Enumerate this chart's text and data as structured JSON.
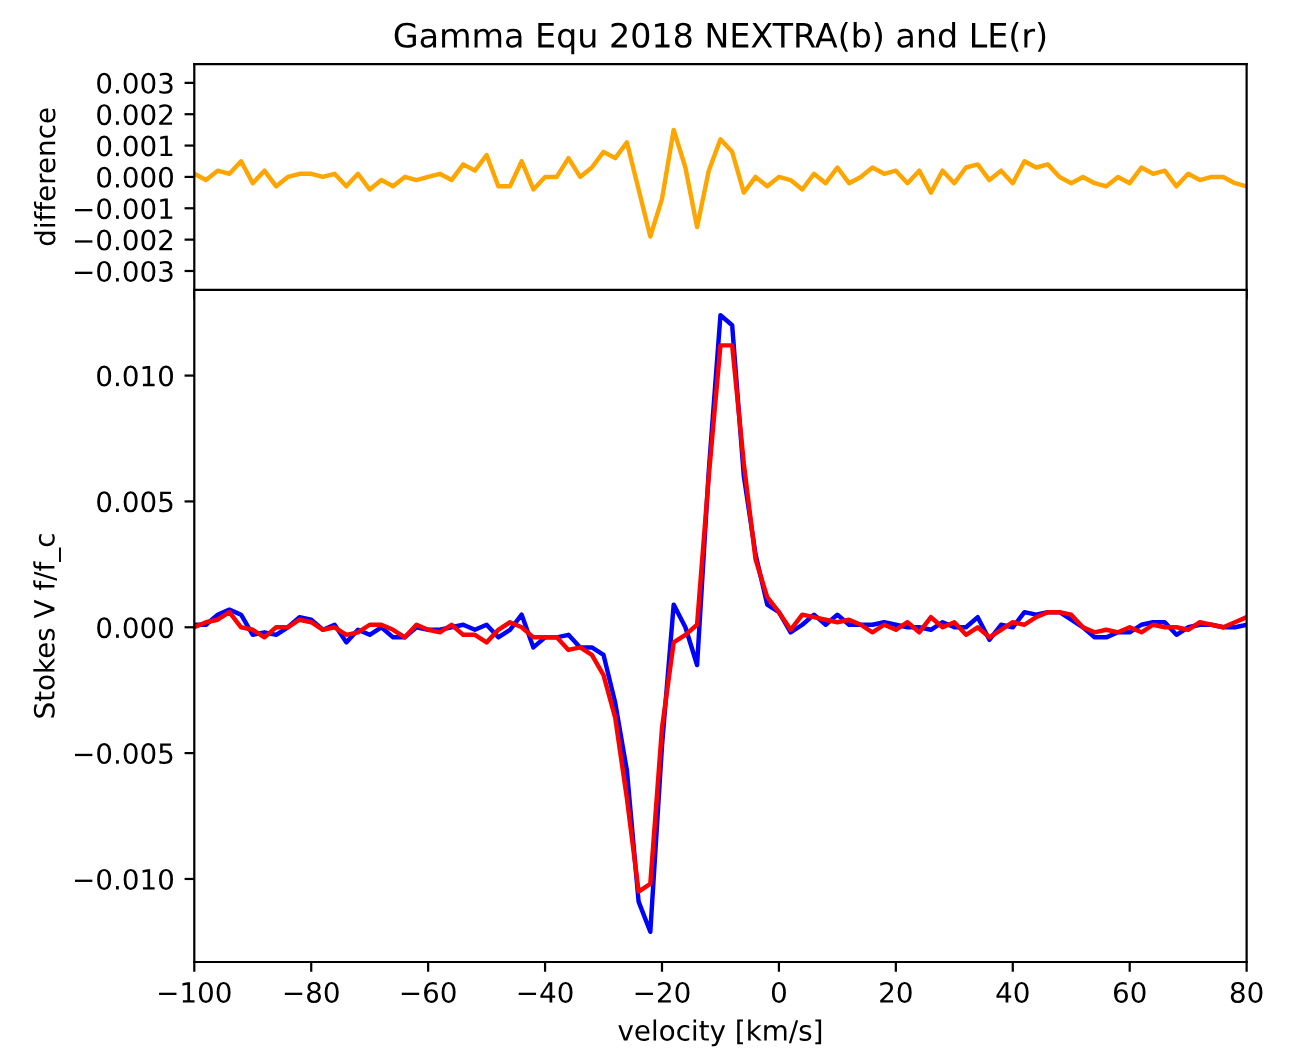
{
  "chart_data": [
    {
      "type": "line",
      "title": "Gamma Equ 2018 NEXTRA(b) and LE(r)",
      "ylabel": "difference",
      "tick_labels": "y",
      "x": [
        -100,
        -98,
        -96,
        -94,
        -92,
        -90,
        -88,
        -86,
        -84,
        -82,
        -80,
        -78,
        -76,
        -74,
        -72,
        -70,
        -68,
        -66,
        -64,
        -62,
        -60,
        -58,
        -56,
        -54,
        -52,
        -50,
        -48,
        -46,
        -44,
        -42,
        -40,
        -38,
        -36,
        -34,
        -32,
        -30,
        -28,
        -26,
        -24,
        -22,
        -20,
        -18,
        -16,
        -14,
        -12,
        -10,
        -8,
        -6,
        -4,
        -2,
        0,
        2,
        4,
        6,
        8,
        10,
        12,
        14,
        16,
        18,
        20,
        22,
        24,
        26,
        28,
        30,
        32,
        34,
        36,
        38,
        40,
        42,
        44,
        46,
        48,
        50,
        52,
        54,
        56,
        58,
        60,
        62,
        64,
        66,
        68,
        70,
        72,
        74,
        76,
        78,
        80
      ],
      "series": [
        {
          "color": "#ffa500",
          "values": [
            0.0001,
            -0.0001,
            0.0002,
            0.0001,
            0.0005,
            -0.0002,
            0.0002,
            -0.0003,
            0.0,
            0.0001,
            0.0001,
            0.0,
            0.0001,
            -0.0003,
            0.0001,
            -0.0004,
            -0.0001,
            -0.0003,
            0.0,
            -0.0001,
            0.0,
            0.0001,
            -0.0001,
            0.0004,
            0.0002,
            0.0007,
            -0.0003,
            -0.0003,
            0.0005,
            -0.0004,
            0.0,
            0.0,
            0.0006,
            0.0,
            0.0003,
            0.0008,
            0.0006,
            0.0011,
            -0.0004,
            -0.0019,
            -0.0007,
            0.0015,
            0.0003,
            -0.0016,
            0.0002,
            0.0012,
            0.0008,
            -0.0005,
            0.0,
            -0.0003,
            0.0,
            -0.0001,
            -0.0004,
            0.0001,
            -0.0002,
            0.0003,
            -0.0002,
            0.0,
            0.0003,
            0.0001,
            0.0002,
            -0.0002,
            0.0002,
            -0.0005,
            0.0002,
            -0.0002,
            0.0003,
            0.0004,
            -0.0001,
            0.0002,
            -0.0002,
            0.0005,
            0.0003,
            0.0004,
            0.0,
            -0.0002,
            0.0,
            -0.0002,
            -0.0003,
            0.0,
            -0.0002,
            0.0003,
            0.0001,
            0.0002,
            -0.0003,
            0.0001,
            -0.0001,
            0.0,
            0.0,
            -0.0002,
            -0.0003
          ]
        }
      ],
      "xlim": [
        -100,
        80
      ],
      "xticks": [
        -100,
        -80,
        -60,
        -40,
        -20,
        0,
        20,
        40,
        60,
        80
      ],
      "ylim": [
        -0.0036,
        0.0036
      ],
      "yticks": [
        {
          "value": -0.003,
          "label": "−0.003"
        },
        {
          "value": -0.002,
          "label": "−0.002"
        },
        {
          "value": -0.001,
          "label": "−0.001"
        },
        {
          "value": 0,
          "label": "0.000"
        },
        {
          "value": 0.001,
          "label": "0.001"
        },
        {
          "value": 0.002,
          "label": "0.002"
        },
        {
          "value": 0.003,
          "label": "0.003"
        }
      ]
    },
    {
      "type": "line",
      "xlabel": "velocity [km/s]",
      "ylabel": "Stokes V f/f_c",
      "x": [
        -100,
        -98,
        -96,
        -94,
        -92,
        -90,
        -88,
        -86,
        -84,
        -82,
        -80,
        -78,
        -76,
        -74,
        -72,
        -70,
        -68,
        -66,
        -64,
        -62,
        -60,
        -58,
        -56,
        -54,
        -52,
        -50,
        -48,
        -46,
        -44,
        -42,
        -40,
        -38,
        -36,
        -34,
        -32,
        -30,
        -28,
        -26,
        -24,
        -22,
        -20,
        -18,
        -16,
        -14,
        -12,
        -10,
        -8,
        -6,
        -4,
        -2,
        0,
        2,
        4,
        6,
        8,
        10,
        12,
        14,
        16,
        18,
        20,
        22,
        24,
        26,
        28,
        30,
        32,
        34,
        36,
        38,
        40,
        42,
        44,
        46,
        48,
        50,
        52,
        54,
        56,
        58,
        60,
        62,
        64,
        66,
        68,
        70,
        72,
        74,
        76,
        78,
        80
      ],
      "series": [
        {
          "color": "#0000ff",
          "values": [
            0.0001,
            0.0001,
            0.0005,
            0.0007,
            0.0005,
            -0.0003,
            -0.0002,
            -0.0003,
            0.0,
            0.0004,
            0.0003,
            -0.0001,
            0.0001,
            -0.0006,
            -0.0001,
            -0.0003,
            0.0,
            -0.0004,
            -0.0004,
            0.0,
            -0.0001,
            -0.0001,
            0.0,
            0.0001,
            -0.0001,
            0.0001,
            -0.0004,
            -0.0001,
            0.0005,
            -0.0008,
            -0.0004,
            -0.0004,
            -0.0003,
            -0.0008,
            -0.0008,
            -0.0011,
            -0.003,
            -0.0057,
            -0.0109,
            -0.0121,
            -0.0047,
            0.0009,
            0.0,
            -0.0015,
            0.0062,
            0.0124,
            0.012,
            0.006,
            0.0029,
            0.0009,
            0.0006,
            -0.0002,
            0.0001,
            0.0005,
            0.0001,
            0.0005,
            0.0001,
            0.0001,
            0.0001,
            0.0002,
            0.0001,
            0.0,
            0.0,
            -0.0001,
            0.0002,
            0.0,
            0.0,
            0.0004,
            -0.0005,
            0.0001,
            0.0,
            0.0006,
            0.0005,
            0.0006,
            0.0006,
            0.0003,
            0.0,
            -0.0004,
            -0.0004,
            -0.0002,
            -0.0002,
            0.0001,
            0.0002,
            0.0002,
            -0.0003,
            0.0,
            0.0001,
            0.0001,
            0.0,
            0.0,
            0.0001
          ]
        },
        {
          "color": "#ff0000",
          "values": [
            0.0,
            0.0002,
            0.0003,
            0.0006,
            0.0,
            -0.0001,
            -0.0004,
            0.0,
            0.0,
            0.0003,
            0.0002,
            -0.0001,
            0.0,
            -0.0003,
            -0.0002,
            0.0001,
            0.0001,
            -0.0001,
            -0.0004,
            0.0001,
            -0.0001,
            -0.0002,
            0.0001,
            -0.0003,
            -0.0003,
            -0.0006,
            -0.0001,
            0.0002,
            0.0,
            -0.0004,
            -0.0004,
            -0.0004,
            -0.0009,
            -0.0008,
            -0.0011,
            -0.0019,
            -0.0036,
            -0.0068,
            -0.0105,
            -0.0102,
            -0.004,
            -0.0006,
            -0.0003,
            0.0001,
            0.006,
            0.0112,
            0.0112,
            0.0065,
            0.0027,
            0.0012,
            0.0006,
            -0.0001,
            0.0005,
            0.0004,
            0.0003,
            0.0002,
            0.0003,
            0.0001,
            -0.0002,
            0.0001,
            -0.0001,
            0.0002,
            -0.0002,
            0.0004,
            0.0,
            0.0002,
            -0.0003,
            0.0,
            -0.0004,
            -0.0001,
            0.0002,
            0.0001,
            0.0004,
            0.0006,
            0.0006,
            0.0005,
            0.0,
            -0.0002,
            -0.0001,
            -0.0002,
            0.0,
            -0.0002,
            0.0001,
            0.0,
            0.0,
            -0.0001,
            0.0002,
            0.0001,
            0.0,
            0.0002,
            0.0004
          ]
        }
      ],
      "xlim": [
        -100,
        80
      ],
      "xticks": [
        {
          "value": -100,
          "label": "−100"
        },
        {
          "value": -80,
          "label": "−80"
        },
        {
          "value": -60,
          "label": "−60"
        },
        {
          "value": -40,
          "label": "−40"
        },
        {
          "value": -20,
          "label": "−20"
        },
        0,
        20,
        40,
        60,
        80
      ],
      "ylim": [
        -0.0133,
        0.0134
      ],
      "yticks": [
        {
          "value": -0.01,
          "label": "−0.010"
        },
        {
          "value": -0.005,
          "label": "−0.005"
        },
        {
          "value": 0,
          "label": "0.000"
        },
        {
          "value": 0.005,
          "label": "0.005"
        },
        {
          "value": 0.01,
          "label": "0.010"
        }
      ]
    }
  ]
}
